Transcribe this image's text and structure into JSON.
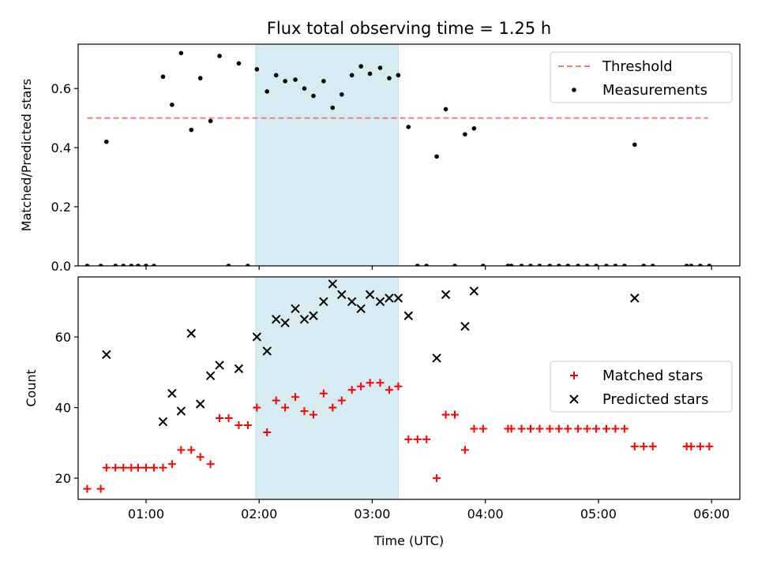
{
  "title": "Flux total observing time = 1.25 h",
  "chart_data": [
    {
      "type": "scatter",
      "ylabel": "Matched/Predicted stars",
      "xlim": [
        0.4,
        6.25
      ],
      "ylim": [
        0,
        0.75
      ],
      "yticks": [
        0.0,
        0.2,
        0.4,
        0.6
      ],
      "ytick_labels": [
        "0.0",
        "0.2",
        "0.4",
        "0.6"
      ],
      "shaded_span": [
        1.97,
        3.23
      ],
      "shade_color": "#add8e6",
      "threshold": {
        "name": "Threshold",
        "value": 0.5,
        "x": [
          0.48,
          5.97
        ],
        "color": "#f08080"
      },
      "legend": {
        "placement": "upper right",
        "threshold_label": "Threshold",
        "series_label": "Measurements"
      },
      "series": [
        {
          "name": "Measurements",
          "marker": "dot",
          "color": "#000000",
          "x": [
            0.48,
            0.6,
            0.65,
            0.73,
            0.8,
            0.87,
            0.93,
            1.0,
            1.07,
            1.15,
            1.23,
            1.31,
            1.4,
            1.48,
            1.57,
            1.65,
            1.73,
            1.82,
            1.9,
            1.98,
            2.07,
            2.15,
            2.23,
            2.32,
            2.4,
            2.48,
            2.57,
            2.65,
            2.73,
            2.82,
            2.9,
            2.98,
            3.07,
            3.15,
            3.23,
            3.32,
            3.4,
            3.48,
            3.57,
            3.65,
            3.73,
            3.82,
            3.9,
            3.98,
            4.2,
            4.23,
            4.32,
            4.4,
            4.48,
            4.57,
            4.65,
            4.73,
            4.82,
            4.9,
            4.98,
            5.07,
            5.15,
            5.23,
            5.32,
            5.4,
            5.48,
            5.78,
            5.82,
            5.9,
            5.98
          ],
          "y": [
            0,
            0,
            0.42,
            0,
            0,
            0,
            0,
            0,
            0,
            0.64,
            0.545,
            0.72,
            0.46,
            0.635,
            0.49,
            0.71,
            0,
            0.685,
            0,
            0.665,
            0.59,
            0.645,
            0.625,
            0.63,
            0.6,
            0.575,
            0.625,
            0.535,
            0.58,
            0.645,
            0.675,
            0.65,
            0.67,
            0.635,
            0.645,
            0.47,
            0,
            0,
            0.37,
            0.53,
            0,
            0.445,
            0.465,
            0,
            0,
            0,
            0,
            0,
            0,
            0,
            0,
            0,
            0,
            0,
            0,
            0,
            0,
            0,
            0.41,
            0,
            0,
            0,
            0,
            0,
            0
          ]
        }
      ]
    },
    {
      "type": "scatter",
      "xlabel": "Time (UTC)",
      "ylabel": "Count",
      "xlim": [
        0.4,
        6.25
      ],
      "ylim": [
        14,
        77
      ],
      "xticks": [
        1,
        2,
        3,
        4,
        5,
        6
      ],
      "xtick_labels": [
        "01:00",
        "02:00",
        "03:00",
        "04:00",
        "05:00",
        "06:00"
      ],
      "yticks": [
        20,
        40,
        60
      ],
      "ytick_labels": [
        "20",
        "40",
        "60"
      ],
      "shaded_span": [
        1.97,
        3.23
      ],
      "shade_color": "#add8e6",
      "legend": {
        "placement": "center right"
      },
      "series": [
        {
          "name": "Matched stars",
          "marker": "plus",
          "color": "#ff0000",
          "x": [
            0.48,
            0.6,
            0.65,
            0.73,
            0.8,
            0.87,
            0.93,
            1.0,
            1.07,
            1.15,
            1.23,
            1.31,
            1.4,
            1.48,
            1.57,
            1.65,
            1.73,
            1.82,
            1.9,
            1.98,
            2.07,
            2.15,
            2.23,
            2.32,
            2.4,
            2.48,
            2.57,
            2.65,
            2.73,
            2.82,
            2.9,
            2.98,
            3.07,
            3.15,
            3.23,
            3.32,
            3.4,
            3.48,
            3.57,
            3.65,
            3.73,
            3.82,
            3.9,
            3.98,
            4.2,
            4.23,
            4.32,
            4.4,
            4.48,
            4.57,
            4.65,
            4.73,
            4.82,
            4.9,
            4.98,
            5.07,
            5.15,
            5.23,
            5.32,
            5.4,
            5.48,
            5.78,
            5.82,
            5.9,
            5.98
          ],
          "y": [
            17,
            17,
            23,
            23,
            23,
            23,
            23,
            23,
            23,
            23,
            24,
            28,
            28,
            26,
            24,
            37,
            37,
            35,
            35,
            40,
            33,
            42,
            40,
            43,
            39,
            38,
            44,
            40,
            42,
            45,
            46,
            47,
            47,
            45,
            46,
            31,
            31,
            31,
            20,
            38,
            38,
            28,
            34,
            34,
            34,
            34,
            34,
            34,
            34,
            34,
            34,
            34,
            34,
            34,
            34,
            34,
            34,
            34,
            29,
            29,
            29,
            29,
            29,
            29,
            29
          ]
        },
        {
          "name": "Predicted stars",
          "marker": "x",
          "color": "#000000",
          "x": [
            0.65,
            1.15,
            1.23,
            1.31,
            1.4,
            1.48,
            1.57,
            1.65,
            1.82,
            1.98,
            2.07,
            2.15,
            2.23,
            2.32,
            2.4,
            2.48,
            2.57,
            2.65,
            2.73,
            2.82,
            2.9,
            2.98,
            3.07,
            3.15,
            3.23,
            3.32,
            3.57,
            3.65,
            3.82,
            3.9,
            5.32
          ],
          "y": [
            55,
            36,
            44,
            39,
            61,
            41,
            49,
            52,
            51,
            60,
            56,
            65,
            64,
            68,
            65,
            66,
            70,
            75,
            72,
            70,
            68,
            72,
            70,
            71,
            71,
            66,
            54,
            72,
            63,
            73,
            71
          ]
        }
      ]
    }
  ]
}
